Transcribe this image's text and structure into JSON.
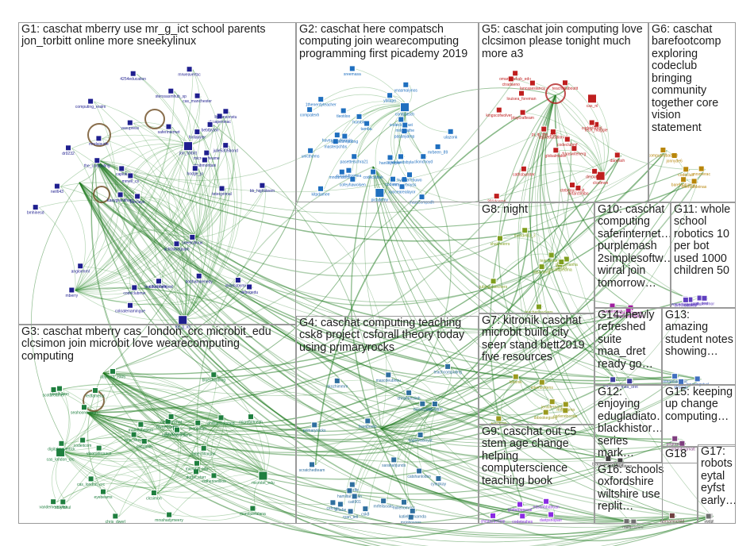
{
  "groups": [
    {
      "id": "G1",
      "title": "G1: caschat mberry use mr_g_ict school parents jon_torbitt online more sneekylinux"
    },
    {
      "id": "G2",
      "title": "G2: caschat here compatsch computing join wearecomputing programming first picademy 2019"
    },
    {
      "id": "G3",
      "title": "G3: caschat mberry cas_london_crc microbit_edu clcsimon join microbit love wearecomputing computing"
    },
    {
      "id": "G4",
      "title": "G4: caschat computing teaching csk8 project csforall theory today using primaryrocks"
    },
    {
      "id": "G5",
      "title": "G5: caschat join computing love clcsimon please tonight much more a3"
    },
    {
      "id": "G6",
      "title": "G6: caschat barefootcomp exploring codeclub bringing community together core vision statement"
    },
    {
      "id": "G7",
      "title": "G7: kitronik caschat microbit build city seen stand bett2019 five resources"
    },
    {
      "id": "G8",
      "title": "G8: night"
    },
    {
      "id": "G9",
      "title": "G9: caschat out c5 stem age change helping computerscience teaching book"
    },
    {
      "id": "G10",
      "title": "G10: caschat computing saferinternet… purplemash 2simplesoftw… wirral join tomorrow…"
    },
    {
      "id": "G11",
      "title": "G11: whole school robotics 10 per bot used 1000 children 50"
    },
    {
      "id": "G12",
      "title": "G12: enjoying edugladiato… blackhistor… series mark…"
    },
    {
      "id": "G13",
      "title": "G13: amazing student notes showing…"
    },
    {
      "id": "G14",
      "title": "G14: newly refreshed suite maa_dret ready go…"
    },
    {
      "id": "G15",
      "title": "G15: keeping up change computing…"
    },
    {
      "id": "G16",
      "title": "G16: schools oxfordshire wiltshire use replit…"
    },
    {
      "id": "G17",
      "title": "G17: robots eytal eyfst early…"
    },
    {
      "id": "G18",
      "title": "G18"
    }
  ],
  "nodes": {
    "G1": [
      "jon_torbitt",
      "mr_g_ict",
      "sneekylinux",
      "mberry",
      "bobhamkenedy",
      "microsofteame",
      "ukuapeninac",
      "saferinternet",
      "angloenml",
      "visionsbymiley",
      "neil643",
      "ebahmontani",
      "the_computing",
      "debugedu",
      "mrnell_cs",
      "lbjohnsonstu",
      "dr9232",
      "kaaygrandham",
      "bb_highsteem",
      "bebtbyton",
      "codeclubmw",
      "julie5305bond",
      "caschoide",
      "cas_manchester",
      "sterssasmhub_sp",
      "hodge_jo",
      "fonlakyler",
      "capiuk",
      "coloatenamingue",
      "4254education",
      "computing_realm",
      "mrweavertsc",
      "mndaisurfe",
      "vasupress",
      "tetecprimal",
      "teachescomped",
      "acbtalwagaam",
      "bmhinesd",
      "barclays"
    ],
    "G2": [
      "compatsch",
      "picademy",
      "havenscoderdojo",
      "mrbeen_89",
      "unicthems",
      "codeclubsast",
      "clionchoyd",
      "computingpea",
      "ulazonk",
      "masterpchbs",
      "mrscgeboyss",
      "hanllsymyer",
      "kitpdamee",
      "1thenerdyteacher",
      "codeclubuk",
      "cofeyhawolsen",
      "mndanisbosea",
      "tamba.",
      "compatexh",
      "hyibnorebuwo",
      "marscompsdh",
      "codeeng",
      "sreemasa",
      "pesscomputing",
      "codeleadsbyla",
      "pasanjiamp",
      "xyocearealayor",
      "ynasmaiynos",
      "ybllapo",
      "mrlgmathe",
      "pasettelschra21",
      "humble",
      "tleotiloo"
    ],
    "G3": [
      "cas_london_crc",
      "microbit_edu",
      "clcsimon",
      "philllipscomped",
      "castamin",
      "stuyfahul",
      "abyroaa_2005",
      "davmnelson",
      "scotarearner",
      "nlepthilson",
      "catherineillios",
      "jhangetier",
      "codeitcom",
      "microbitmesh",
      "vandemerelolex",
      "chris_dwerl",
      "seahoonewaon",
      "mrsshadymeery",
      "cas_london_crc",
      "eyebeams",
      "vleonateraacn",
      "rebecfiltaigan",
      "dudsl_starr",
      "redfamelac",
      "bluesfoodiing",
      "digitalmavertick",
      "mandlobaston",
      "microbit_edu",
      "mynewsjeunt",
      "ben_show",
      "catshanchat",
      "moniquefalana",
      "blamoreenefame"
    ],
    "G4": [
      "robotlam",
      "primaryrocks",
      "csk8",
      "teachcomputing",
      "barapeelo",
      "csforall",
      "ryan_tell",
      "mrjohnsons",
      "kaplevaisoyst",
      "millehomens",
      "vanelfe",
      "sarahahjunds",
      "mascdeubnou",
      "cylepkay",
      "scratchedteam",
      "hamiltancelan",
      "katiel_amarnda",
      "mrfeilsoaks",
      "nkozhimmm",
      "dclabe",
      "nkiserpeirt",
      "catt901",
      "catshanlodso",
      "chrisekesiiah"
    ],
    "G5": [
      "clcsimon",
      "cas_nl",
      "ctradaeno",
      "playcrafteam",
      "tagoeducationuk",
      "kingscofwolver",
      "ctebeausnyalt",
      "omarsalehab_edu",
      "cathsburnter",
      "globalmaker",
      "teachallaboutit",
      "tech_maggie",
      "fraaswitenerg",
      "lancasesianca",
      "codeclubmf",
      "codeclubrol",
      "2014comp",
      "dmounl02",
      "louisea_foreman",
      "mrtarcombs",
      "pi_in_the_sky",
      "danyssh"
    ],
    "G6": [
      "barefootcomp",
      "codeclub",
      "cheroutdeinas",
      "jonnyde6",
      "computedbadger",
      "mrsrnerac"
    ],
    "G7": [
      "kitronik",
      "bett2019",
      "jennifereang",
      "carlendocode",
      "ibbookegsmy",
      "mrllscomp",
      "inteminstens"
    ],
    "G8": [
      "teacherfaday",
      "ideaventg",
      "mrslabpedma",
      "jubingyatechers",
      "shakheerrs",
      "grahamanha",
      "mandelli3_3",
      "stcrpn",
      "teacherloackers"
    ],
    "G9": [
      "daripsnoparr",
      "iyntbepupesal",
      "edsonbbatman",
      "chrstazaconlp",
      "codeteahes"
    ],
    "G10": [
      "saferinternet",
      "purplemash",
      "2simplesoftware"
    ],
    "G11": [
      "maa_dret",
      "robotics",
      "wacedntaeesmr",
      "precreatives",
      "uthcemmor"
    ],
    "G12": [
      "edugladiators",
      "blackhistorymonth"
    ],
    "G13": [
      "amazingstud",
      "inteamstudent",
      "ktrslogy"
    ],
    "G14": [
      "maa_dret",
      "supemaker"
    ],
    "G15": [
      "computingmatt",
      "prlgreekd"
    ],
    "G16": [
      "replit",
      "oxfordshire"
    ],
    "G17": [
      "eyfst",
      "eytal"
    ],
    "G18": [
      "clpmamnchild"
    ]
  }
}
